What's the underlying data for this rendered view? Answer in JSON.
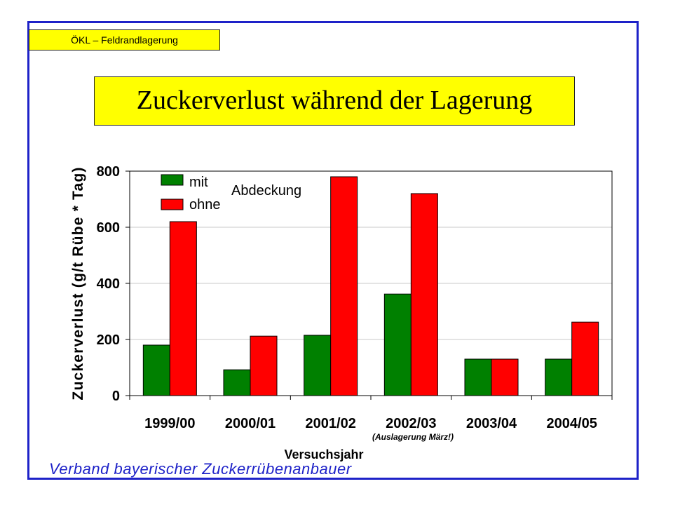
{
  "header": {
    "tag": "ÖKL – Feldrandlagerung",
    "title": "Zuckerverlust während der Lagerung"
  },
  "footer": {
    "text": "Verband bayerischer Zuckerrübenanbauer"
  },
  "colors": {
    "mit": "#008000",
    "ohne": "#ff0000",
    "frame": "#1e22c8",
    "title_bg": "#ffff00"
  },
  "chart_data": {
    "type": "bar",
    "title": "",
    "xlabel": "Versuchsjahr",
    "ylabel": "Zuckerverlust (g/t Rübe * Tag)",
    "ylim": [
      0,
      800
    ],
    "yticks": [
      0,
      200,
      400,
      600,
      800
    ],
    "grid": true,
    "categories": [
      "1999/00",
      "2000/01",
      "2001/02",
      "2002/03",
      "2003/04",
      "2004/05"
    ],
    "series": [
      {
        "name": "mit",
        "values": [
          180,
          92,
          215,
          362,
          130,
          130
        ]
      },
      {
        "name": "ohne",
        "values": [
          620,
          212,
          780,
          720,
          130,
          262
        ]
      }
    ],
    "legend_title": "Abdeckung",
    "legend_position": "top-left",
    "annotation": "(Auslagerung März!)"
  }
}
